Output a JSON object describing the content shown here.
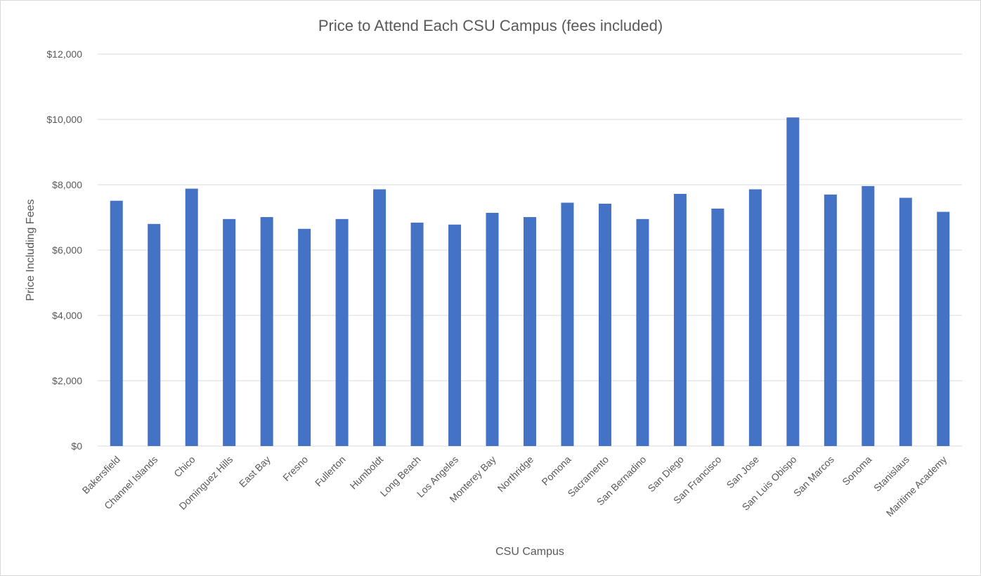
{
  "chart_data": {
    "type": "bar",
    "title": "Price to Attend Each CSU Campus (fees included)",
    "xlabel": "CSU Campus",
    "ylabel": "Price Including Fees",
    "ylim": [
      0,
      12000
    ],
    "yticks": [
      0,
      2000,
      4000,
      6000,
      8000,
      10000,
      12000
    ],
    "ytick_labels": [
      "$0",
      "$2,000",
      "$4,000",
      "$6,000",
      "$8,000",
      "$10,000",
      "$12,000"
    ],
    "grid": true,
    "legend": "none",
    "bar_color": "#4472c4",
    "categories": [
      "Bakersfield",
      "Channel Islands",
      "Chico",
      "Dominguez Hills",
      "East Bay",
      "Fresno",
      "Fullerton",
      "Humboldt",
      "Long Beach",
      "Los Angeles",
      "Monterey Bay",
      "Northridge",
      "Pomona",
      "Sacramento",
      "San Bernadino",
      "San Diego",
      "San Francisco",
      "San Jose",
      "San Luis Obispo",
      "San Marcos",
      "Sonoma",
      "Stanislaus",
      "Maritime Academy"
    ],
    "values": [
      7510,
      6800,
      7880,
      6950,
      7010,
      6650,
      6950,
      7860,
      6840,
      6780,
      7140,
      7010,
      7450,
      7420,
      6950,
      7720,
      7270,
      7860,
      10060,
      7700,
      7960,
      7600,
      7170
    ]
  }
}
